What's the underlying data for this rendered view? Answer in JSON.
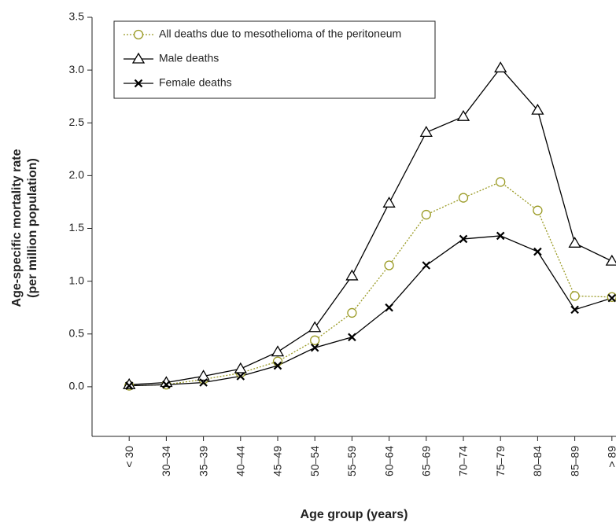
{
  "chart_data": {
    "type": "line",
    "ylabel": [
      "Age-specific mortality rate",
      "(per million population)"
    ],
    "xlabel": "Age group (years)",
    "categories": [
      "< 30",
      "30–34",
      "35–39",
      "40–44",
      "45–49",
      "50–54",
      "55–59",
      "60–64",
      "65–69",
      "70–74",
      "75–79",
      "80–84",
      "85–89",
      "> 89"
    ],
    "series": [
      {
        "name": "All deaths due to mesothelioma of the peritoneum",
        "color": "#9a9a24",
        "marker": "circle",
        "dash": "dotted",
        "values": [
          0.01,
          0.02,
          0.07,
          0.13,
          0.24,
          0.44,
          0.7,
          1.15,
          1.63,
          1.79,
          1.94,
          1.67,
          0.86,
          0.85
        ]
      },
      {
        "name": "Male deaths",
        "color": "#000000",
        "marker": "triangle",
        "dash": "solid",
        "values": [
          0.02,
          0.04,
          0.1,
          0.17,
          0.33,
          0.56,
          1.05,
          1.74,
          2.41,
          2.56,
          3.02,
          2.62,
          1.36,
          1.19
        ]
      },
      {
        "name": "Female deaths",
        "color": "#000000",
        "marker": "x",
        "dash": "solid",
        "values": [
          0.01,
          0.02,
          0.04,
          0.1,
          0.2,
          0.37,
          0.47,
          0.75,
          1.15,
          1.4,
          1.43,
          1.28,
          0.73,
          0.84
        ]
      }
    ],
    "ylim": [
      -0.47,
      3.5
    ],
    "yticks": [
      {
        "value": 0,
        "label": "0.0"
      },
      0.5,
      {
        "value": 1,
        "label": "1.0"
      },
      1.5,
      {
        "value": 2,
        "label": "2.0"
      },
      2.5,
      {
        "value": 3,
        "label": "3.0"
      },
      3.5
    ],
    "grid": false,
    "legend": "upper left"
  }
}
